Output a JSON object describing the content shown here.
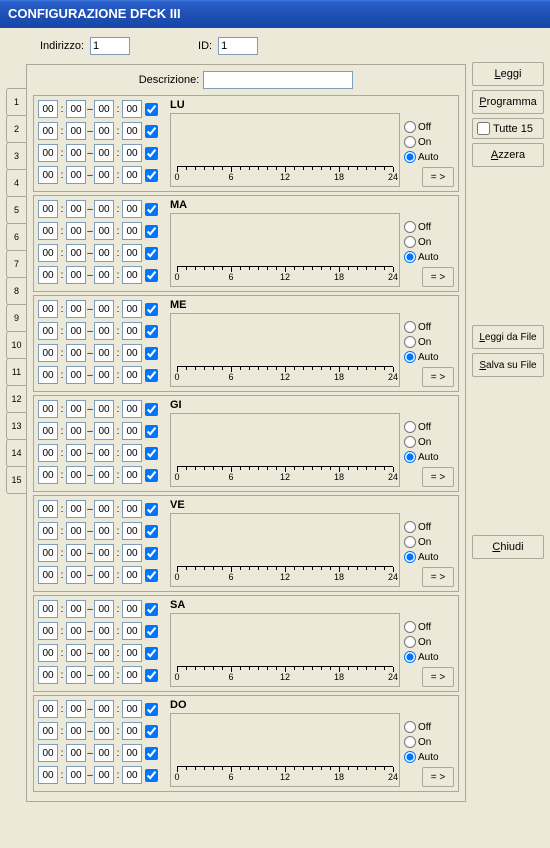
{
  "window": {
    "title": "CONFIGURAZIONE DFCK III"
  },
  "top": {
    "indirizzo_label": "Indirizzo:",
    "indirizzo_value": "1",
    "id_label": "ID:",
    "id_value": "1"
  },
  "descrizione": {
    "label": "Descrizione:",
    "value": ""
  },
  "rail": {
    "tabs": [
      "1",
      "2",
      "3",
      "4",
      "5",
      "6",
      "7",
      "8",
      "9",
      "10",
      "11",
      "12",
      "13",
      "14",
      "15"
    ]
  },
  "radio_labels": {
    "off": "Off",
    "on": "On",
    "auto": "Auto"
  },
  "axis": {
    "ticks": [
      0,
      6,
      12,
      18,
      24
    ],
    "max": 24
  },
  "copy_label": "= >",
  "days": [
    {
      "code": "LU",
      "rows": [
        [
          "00",
          "00",
          "00",
          "00",
          true
        ],
        [
          "00",
          "00",
          "00",
          "00",
          true
        ],
        [
          "00",
          "00",
          "00",
          "00",
          true
        ],
        [
          "00",
          "00",
          "00",
          "00",
          true
        ]
      ],
      "mode": "auto"
    },
    {
      "code": "MA",
      "rows": [
        [
          "00",
          "00",
          "00",
          "00",
          true
        ],
        [
          "00",
          "00",
          "00",
          "00",
          true
        ],
        [
          "00",
          "00",
          "00",
          "00",
          true
        ],
        [
          "00",
          "00",
          "00",
          "00",
          true
        ]
      ],
      "mode": "auto"
    },
    {
      "code": "ME",
      "rows": [
        [
          "00",
          "00",
          "00",
          "00",
          true
        ],
        [
          "00",
          "00",
          "00",
          "00",
          true
        ],
        [
          "00",
          "00",
          "00",
          "00",
          true
        ],
        [
          "00",
          "00",
          "00",
          "00",
          true
        ]
      ],
      "mode": "auto"
    },
    {
      "code": "GI",
      "rows": [
        [
          "00",
          "00",
          "00",
          "00",
          true
        ],
        [
          "00",
          "00",
          "00",
          "00",
          true
        ],
        [
          "00",
          "00",
          "00",
          "00",
          true
        ],
        [
          "00",
          "00",
          "00",
          "00",
          true
        ]
      ],
      "mode": "auto"
    },
    {
      "code": "VE",
      "rows": [
        [
          "00",
          "00",
          "00",
          "00",
          true
        ],
        [
          "00",
          "00",
          "00",
          "00",
          true
        ],
        [
          "00",
          "00",
          "00",
          "00",
          true
        ],
        [
          "00",
          "00",
          "00",
          "00",
          true
        ]
      ],
      "mode": "auto"
    },
    {
      "code": "SA",
      "rows": [
        [
          "00",
          "00",
          "00",
          "00",
          true
        ],
        [
          "00",
          "00",
          "00",
          "00",
          true
        ],
        [
          "00",
          "00",
          "00",
          "00",
          true
        ],
        [
          "00",
          "00",
          "00",
          "00",
          true
        ]
      ],
      "mode": "auto"
    },
    {
      "code": "DO",
      "rows": [
        [
          "00",
          "00",
          "00",
          "00",
          true
        ],
        [
          "00",
          "00",
          "00",
          "00",
          true
        ],
        [
          "00",
          "00",
          "00",
          "00",
          true
        ],
        [
          "00",
          "00",
          "00",
          "00",
          true
        ]
      ],
      "mode": "auto"
    }
  ],
  "sidebar": {
    "leggi": "Leggi",
    "programma": "Programma",
    "tutte15": "Tutte 15",
    "azzera": "Azzera",
    "leggi_file": "Leggi da File",
    "salva_file": "Salva su File",
    "chiudi": "Chiudi"
  },
  "colors": {
    "titlebar_start": "#3b77dd",
    "titlebar_end": "#1647a8",
    "bg": "#ece9d8",
    "border": "#aca899",
    "input_border": "#7f9db9"
  }
}
